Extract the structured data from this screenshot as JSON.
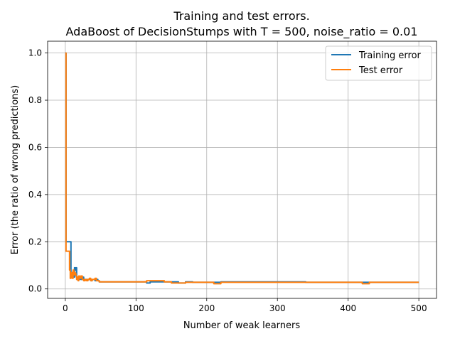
{
  "chart_data": {
    "type": "line",
    "title": "Training and test errors.",
    "subtitle": "AdaBoost of DecisionStumps with T = 500, noise_ratio = 0.01",
    "xlabel": "Number of weak learners",
    "ylabel": "Error (the ratio of wrong predictions)",
    "xlim": [
      -25,
      525
    ],
    "ylim": [
      -0.04,
      1.05
    ],
    "xticks": [
      0,
      100,
      200,
      300,
      400,
      500
    ],
    "yticks": [
      0.0,
      0.2,
      0.4,
      0.6,
      0.8,
      1.0
    ],
    "xtick_labels": [
      "0",
      "100",
      "200",
      "300",
      "400",
      "500"
    ],
    "ytick_labels": [
      "0.0",
      "0.2",
      "0.4",
      "0.6",
      "0.8",
      "1.0"
    ],
    "grid": true,
    "legend_position": "top-right",
    "series": [
      {
        "name": "Training error",
        "color": "#1f77b4",
        "x": [
          0,
          1,
          2,
          3,
          4,
          5,
          6,
          7,
          8,
          9,
          10,
          11,
          12,
          13,
          14,
          15,
          16,
          17,
          18,
          19,
          20,
          22,
          24,
          26,
          28,
          30,
          32,
          34,
          36,
          38,
          40,
          42,
          44,
          46,
          48,
          50,
          60,
          70,
          80,
          90,
          100,
          110,
          115,
          120,
          130,
          140,
          150,
          160,
          170,
          180,
          190,
          200,
          210,
          220,
          230,
          240,
          250,
          260,
          270,
          280,
          290,
          300,
          310,
          320,
          330,
          340,
          350,
          360,
          380,
          400,
          420,
          440,
          460,
          480,
          500
        ],
        "y": [
          1.0,
          0.2,
          0.2,
          0.2,
          0.2,
          0.2,
          0.2,
          0.2,
          0.06,
          0.05,
          0.06,
          0.06,
          0.05,
          0.09,
          0.08,
          0.09,
          0.05,
          0.04,
          0.05,
          0.04,
          0.05,
          0.04,
          0.05,
          0.04,
          0.04,
          0.04,
          0.04,
          0.04,
          0.035,
          0.04,
          0.04,
          0.035,
          0.04,
          0.035,
          0.03,
          0.03,
          0.03,
          0.03,
          0.03,
          0.03,
          0.03,
          0.03,
          0.025,
          0.03,
          0.03,
          0.03,
          0.03,
          0.025,
          0.03,
          0.028,
          0.028,
          0.028,
          0.028,
          0.03,
          0.03,
          0.03,
          0.03,
          0.03,
          0.03,
          0.03,
          0.03,
          0.03,
          0.03,
          0.03,
          0.03,
          0.028,
          0.028,
          0.028,
          0.028,
          0.028,
          0.028,
          0.028,
          0.028,
          0.028,
          0.028
        ]
      },
      {
        "name": "Test error",
        "color": "#ff7f0e",
        "x": [
          0,
          1,
          2,
          3,
          4,
          5,
          6,
          7,
          8,
          9,
          10,
          11,
          12,
          13,
          14,
          15,
          16,
          17,
          18,
          19,
          20,
          22,
          24,
          26,
          28,
          30,
          32,
          34,
          36,
          38,
          40,
          42,
          44,
          46,
          48,
          50,
          60,
          70,
          80,
          90,
          100,
          110,
          115,
          120,
          130,
          140,
          150,
          160,
          170,
          180,
          190,
          200,
          210,
          220,
          230,
          240,
          250,
          260,
          270,
          280,
          290,
          300,
          310,
          320,
          330,
          340,
          350,
          360,
          380,
          400,
          410,
          420,
          430,
          440,
          460,
          480,
          500
        ],
        "y": [
          1.0,
          0.16,
          0.16,
          0.16,
          0.16,
          0.16,
          0.08,
          0.045,
          0.05,
          0.07,
          0.045,
          0.08,
          0.06,
          0.07,
          0.065,
          0.055,
          0.04,
          0.05,
          0.035,
          0.055,
          0.045,
          0.055,
          0.04,
          0.035,
          0.04,
          0.035,
          0.04,
          0.045,
          0.035,
          0.04,
          0.04,
          0.045,
          0.035,
          0.035,
          0.03,
          0.03,
          0.03,
          0.03,
          0.03,
          0.03,
          0.03,
          0.03,
          0.035,
          0.035,
          0.035,
          0.03,
          0.025,
          0.025,
          0.028,
          0.028,
          0.028,
          0.028,
          0.022,
          0.028,
          0.028,
          0.028,
          0.028,
          0.028,
          0.028,
          0.028,
          0.028,
          0.028,
          0.028,
          0.028,
          0.028,
          0.028,
          0.028,
          0.028,
          0.028,
          0.028,
          0.028,
          0.022,
          0.028,
          0.028,
          0.028,
          0.028,
          0.028
        ]
      }
    ]
  }
}
